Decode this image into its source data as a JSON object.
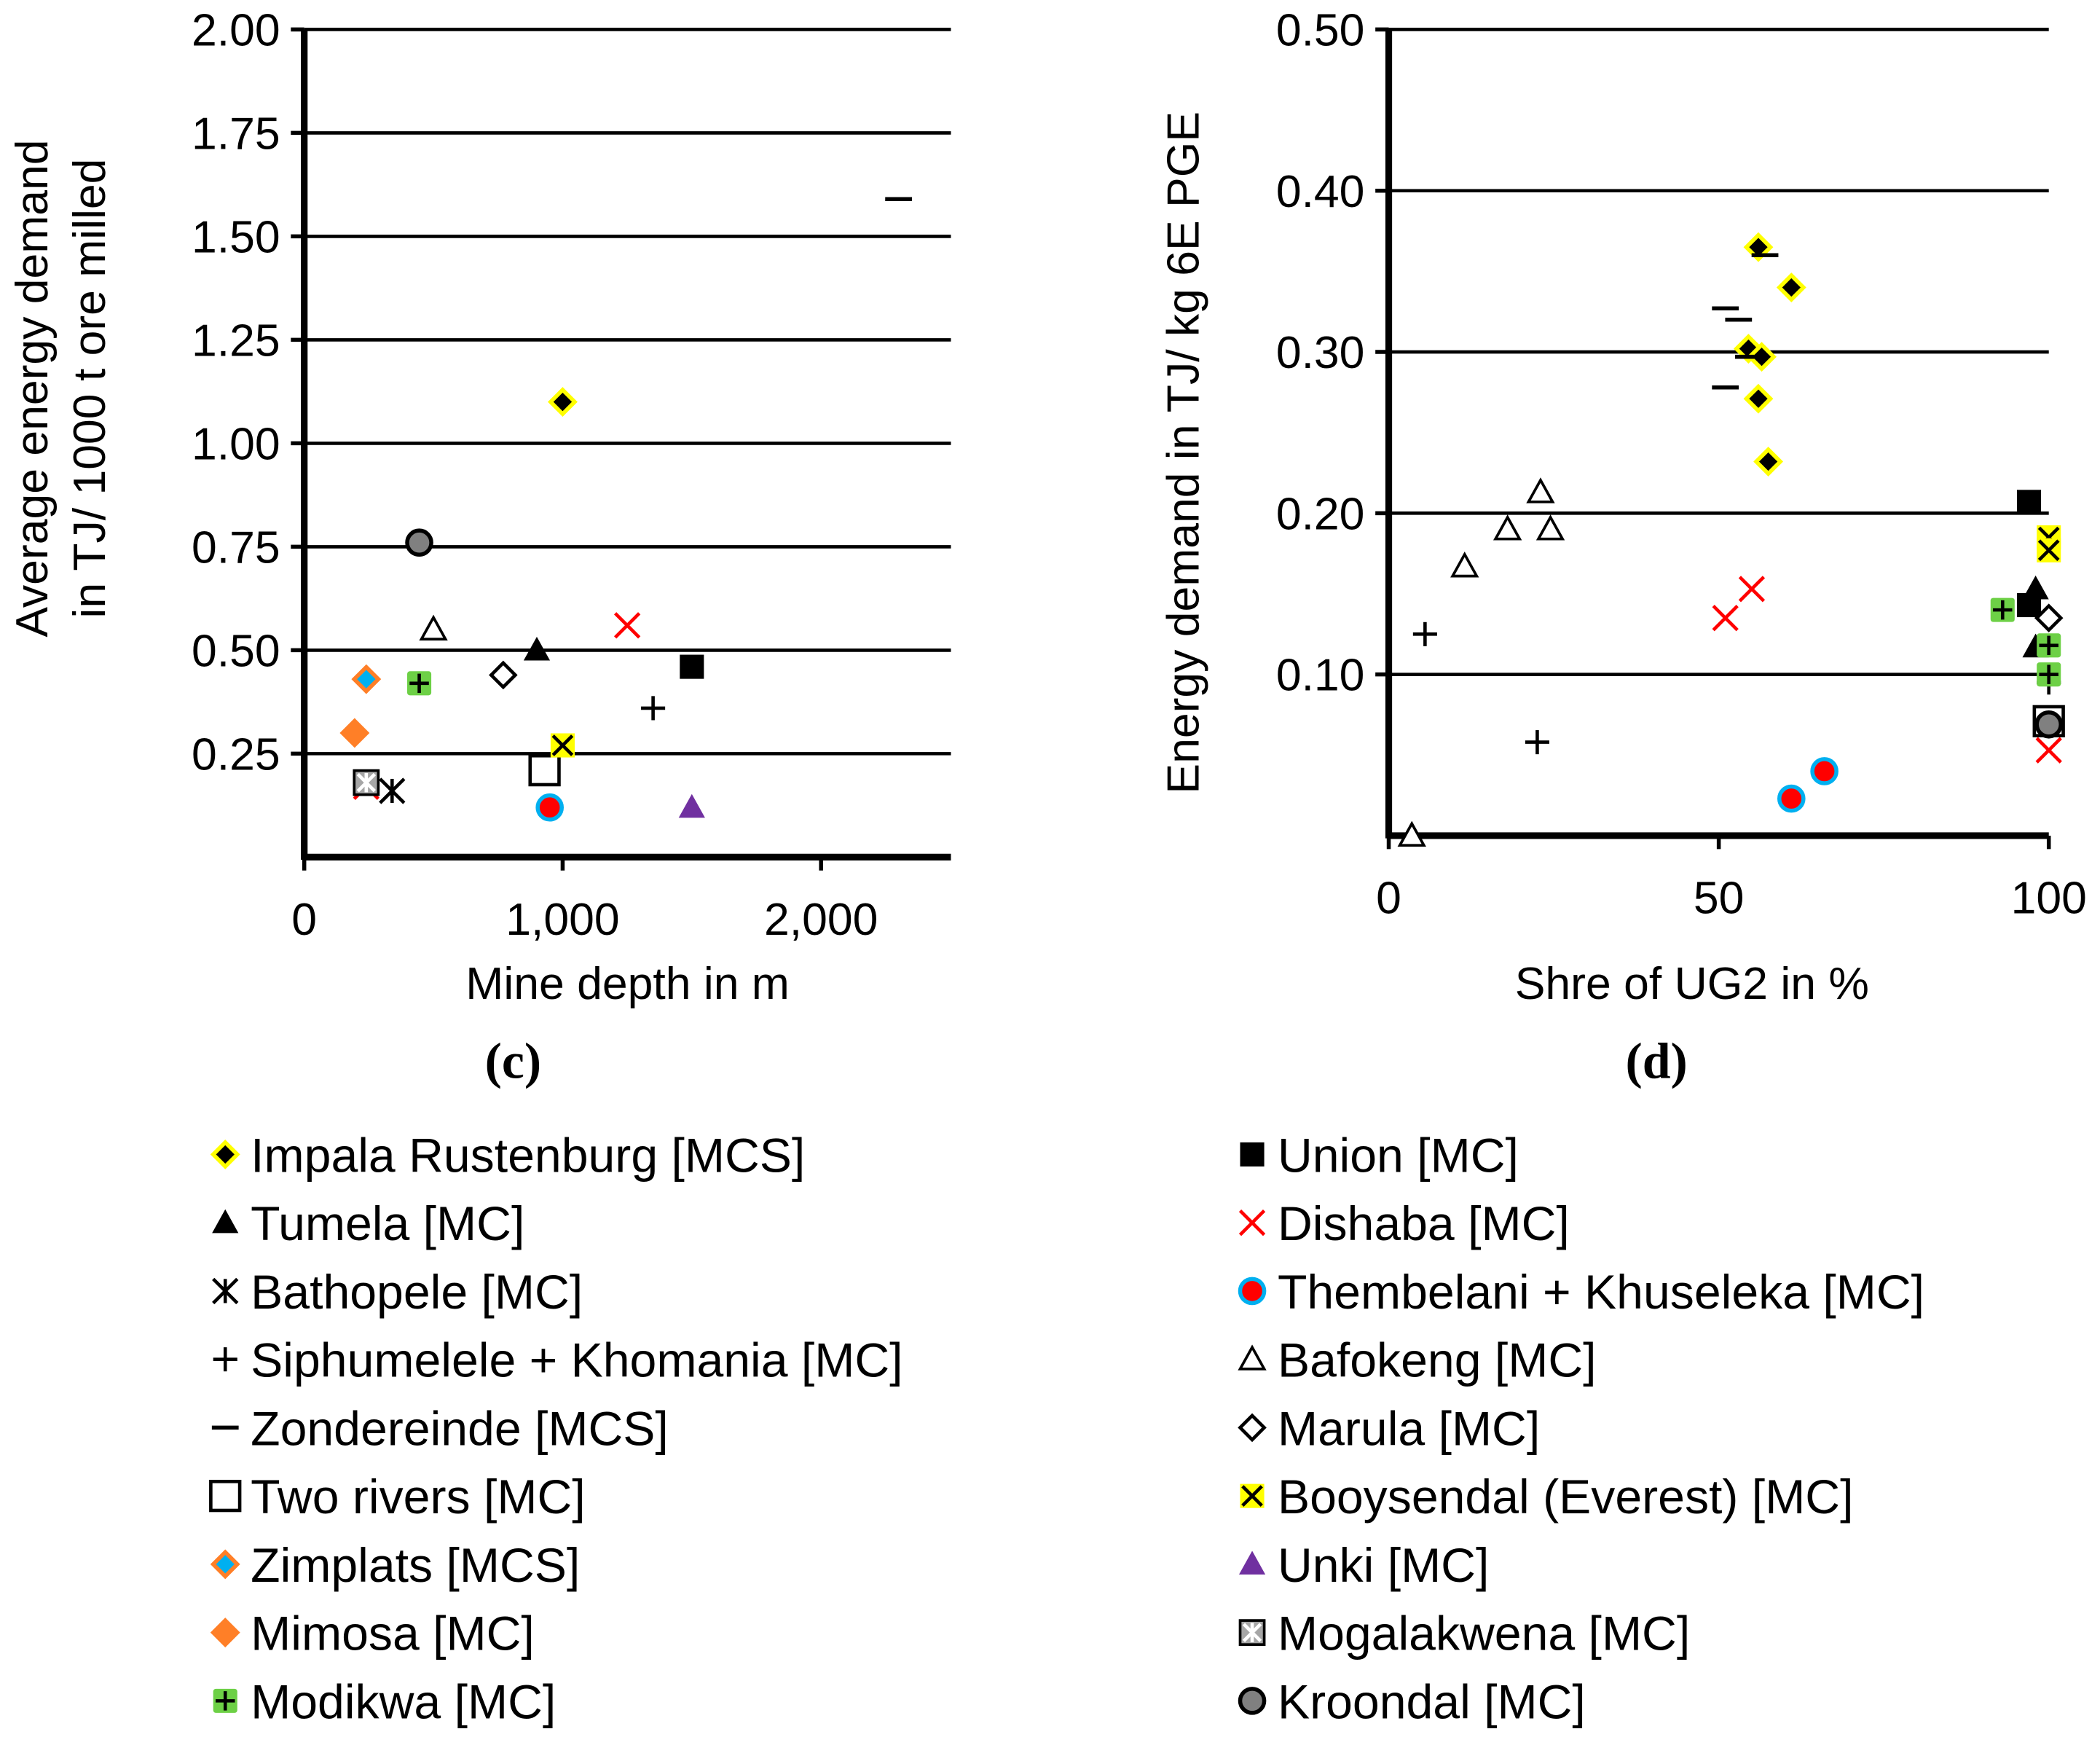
{
  "legend_items": [
    {
      "name": "Impala Rustenburg [MCS]",
      "marker": "diamond",
      "fill": "#000000",
      "stroke": "#FFFF00"
    },
    {
      "name": "Tumela [MC]",
      "marker": "triangle",
      "fill": "#000000",
      "stroke": "#000000"
    },
    {
      "name": "Bathopele [MC]",
      "marker": "asterisk",
      "fill": "none",
      "stroke": "#000000"
    },
    {
      "name": "Siphumelele + Khomania [MC]",
      "marker": "plus",
      "fill": "none",
      "stroke": "#000000"
    },
    {
      "name": "Zondereinde [MCS]",
      "marker": "dash",
      "fill": "none",
      "stroke": "#000000"
    },
    {
      "name": "Two rivers [MC]",
      "marker": "square-open",
      "fill": "#FFFFFF",
      "stroke": "#000000"
    },
    {
      "name": "Zimplats [MCS]",
      "marker": "diamond",
      "fill": "#00B0F0",
      "stroke": "#FF7F27"
    },
    {
      "name": "Mimosa [MC]",
      "marker": "diamond",
      "fill": "#FF7F27",
      "stroke": "#FF7F27"
    },
    {
      "name": "Modikwa [MC]",
      "marker": "plus-square",
      "fill": "#6DD046",
      "stroke": "#000000"
    },
    {
      "name": "Union [MC]",
      "marker": "square",
      "fill": "#000000",
      "stroke": "#000000"
    },
    {
      "name": "Dishaba [MC]",
      "marker": "x",
      "fill": "none",
      "stroke": "#FF0000"
    },
    {
      "name": "Thembelani + Khuseleka [MC]",
      "marker": "circle",
      "fill": "#FF0000",
      "stroke": "#00B0F0"
    },
    {
      "name": "Bafokeng [MC]",
      "marker": "triangle-open",
      "fill": "#FFFFFF",
      "stroke": "#000000"
    },
    {
      "name": "Marula [MC]",
      "marker": "diamond-open",
      "fill": "#FFFFFF",
      "stroke": "#000000"
    },
    {
      "name": "Booysendal (Everest) [MC]",
      "marker": "x-square",
      "fill": "#FFFF00",
      "stroke": "#000000"
    },
    {
      "name": "Unki [MC]",
      "marker": "triangle",
      "fill": "#7030A0",
      "stroke": "#7030A0"
    },
    {
      "name": "Mogalakwena [MC]",
      "marker": "asterisk-square",
      "fill": "#A6A6A6",
      "stroke": "#000000"
    },
    {
      "name": "Kroondal [MC]",
      "marker": "circle",
      "fill": "#808080",
      "stroke": "#000000"
    }
  ],
  "chart_data": [
    {
      "type": "scatter",
      "panel_label": "(c)",
      "xlabel": "Mine depth in m",
      "ylabel_lines": [
        "Average energy demand",
        "in TJ/ 1000 t ore milled"
      ],
      "xlim": [
        0,
        2500
      ],
      "ylim": [
        0,
        2.0
      ],
      "xticks": [
        0,
        1000,
        2000
      ],
      "xtick_labels": [
        "0",
        "1,000",
        "2,000"
      ],
      "yticks": [
        0.25,
        0.5,
        0.75,
        1.0,
        1.25,
        1.5,
        1.75,
        2.0
      ],
      "ytick_labels": [
        "0.25",
        "0.50",
        "0.75",
        "1.00",
        "1.25",
        "1.50",
        "1.75",
        "2.00"
      ],
      "grid": "horizontal",
      "series": [
        {
          "name": "Impala Rustenburg [MCS]",
          "points": [
            [
              1000,
              1.1
            ]
          ]
        },
        {
          "name": "Tumela [MC]",
          "points": [
            [
              900,
              0.5
            ]
          ]
        },
        {
          "name": "Bathopele [MC]",
          "points": [
            [
              340,
              0.16
            ]
          ]
        },
        {
          "name": "Siphumelele + Khomania [MC]",
          "points": [
            [
              1350,
              0.36
            ]
          ]
        },
        {
          "name": "Zondereinde [MCS]",
          "points": [
            [
              2300,
              1.59
            ]
          ]
        },
        {
          "name": "Two rivers [MC]",
          "points": [
            [
              930,
              0.21
            ]
          ]
        },
        {
          "name": "Zimplats [MCS]",
          "points": [
            [
              240,
              0.43
            ]
          ]
        },
        {
          "name": "Mimosa [MC]",
          "points": [
            [
              195,
              0.3
            ]
          ]
        },
        {
          "name": "Modikwa [MC]",
          "points": [
            [
              445,
              0.42
            ]
          ]
        },
        {
          "name": "Union [MC]",
          "points": [
            [
              1500,
              0.46
            ]
          ]
        },
        {
          "name": "Dishaba [MC]",
          "points": [
            [
              1250,
              0.56
            ],
            [
              240,
              0.17
            ]
          ]
        },
        {
          "name": "Thembelani + Khuseleka [MC]",
          "points": [
            [
              950,
              0.12
            ]
          ]
        },
        {
          "name": "Bafokeng [MC]",
          "points": [
            [
              500,
              0.55
            ]
          ]
        },
        {
          "name": "Marula [MC]",
          "points": [
            [
              770,
              0.44
            ]
          ]
        },
        {
          "name": "Booysendal (Everest) [MC]",
          "points": [
            [
              1000,
              0.27
            ]
          ]
        },
        {
          "name": "Unki [MC]",
          "points": [
            [
              1500,
              0.12
            ]
          ]
        },
        {
          "name": "Mogalakwena [MC]",
          "points": [
            [
              240,
              0.18
            ]
          ]
        },
        {
          "name": "Kroondal [MC]",
          "points": [
            [
              445,
              0.76
            ]
          ]
        }
      ]
    },
    {
      "type": "scatter",
      "panel_label": "(d)",
      "xlabel": "Shre of UG2 in %",
      "ylabel_lines": [
        "Energy demand in TJ/ kg 6E PGE"
      ],
      "xlim": [
        0,
        100
      ],
      "ylim": [
        0,
        0.5
      ],
      "xticks": [
        0,
        50,
        100
      ],
      "xtick_labels": [
        "0",
        "50",
        "100"
      ],
      "yticks": [
        0.1,
        0.2,
        0.3,
        0.4,
        0.5
      ],
      "ytick_labels": [
        "0.10",
        "0.20",
        "0.30",
        "0.40",
        "0.50"
      ],
      "grid": "horizontal",
      "series": [
        {
          "name": "Impala Rustenburg [MCS]",
          "points": [
            [
              56,
              0.365
            ],
            [
              61,
              0.34
            ],
            [
              54.5,
              0.302
            ],
            [
              56.5,
              0.297
            ],
            [
              56,
              0.271
            ],
            [
              57.5,
              0.232
            ]
          ]
        },
        {
          "name": "Zondereinde [MCS]",
          "points": [
            [
              57,
              0.36
            ],
            [
              51,
              0.327
            ],
            [
              53,
              0.32
            ],
            [
              54.5,
              0.297
            ],
            [
              51,
              0.278
            ]
          ]
        },
        {
          "name": "Bafokeng [MC]",
          "points": [
            [
              3.5,
              0.0
            ],
            [
              11.5,
              0.167
            ],
            [
              18,
              0.19
            ],
            [
              23,
              0.213
            ],
            [
              24.5,
              0.19
            ]
          ]
        },
        {
          "name": "Siphumelele + Khomania [MC]",
          "points": [
            [
              5.5,
              0.125
            ],
            [
              22.5,
              0.058
            ],
            [
              100,
              0.095
            ]
          ]
        },
        {
          "name": "Dishaba [MC]",
          "points": [
            [
              51,
              0.135
            ],
            [
              55,
              0.153
            ],
            [
              100,
              0.053
            ]
          ]
        },
        {
          "name": "Thembelani + Khuseleka [MC]",
          "points": [
            [
              61,
              0.023
            ],
            [
              66,
              0.04
            ]
          ]
        },
        {
          "name": "Union [MC]",
          "points": [
            [
              97,
              0.207
            ],
            [
              97,
              0.143
            ]
          ]
        },
        {
          "name": "Tumela [MC]",
          "points": [
            [
              98,
              0.153
            ],
            [
              98,
              0.117
            ]
          ]
        },
        {
          "name": "Modikwa [MC]",
          "points": [
            [
              93,
              0.14
            ],
            [
              100,
              0.118
            ],
            [
              100,
              0.1
            ]
          ]
        },
        {
          "name": "Marula [MC]",
          "points": [
            [
              100,
              0.135
            ]
          ]
        },
        {
          "name": "Booysendal (Everest) [MC]",
          "points": [
            [
              100,
              0.185
            ],
            [
              100,
              0.177
            ]
          ]
        },
        {
          "name": "Two rivers [MC]",
          "points": [
            [
              100,
              0.071
            ]
          ]
        },
        {
          "name": "Kroondal [MC]",
          "points": [
            [
              100,
              0.069
            ]
          ]
        }
      ]
    }
  ]
}
